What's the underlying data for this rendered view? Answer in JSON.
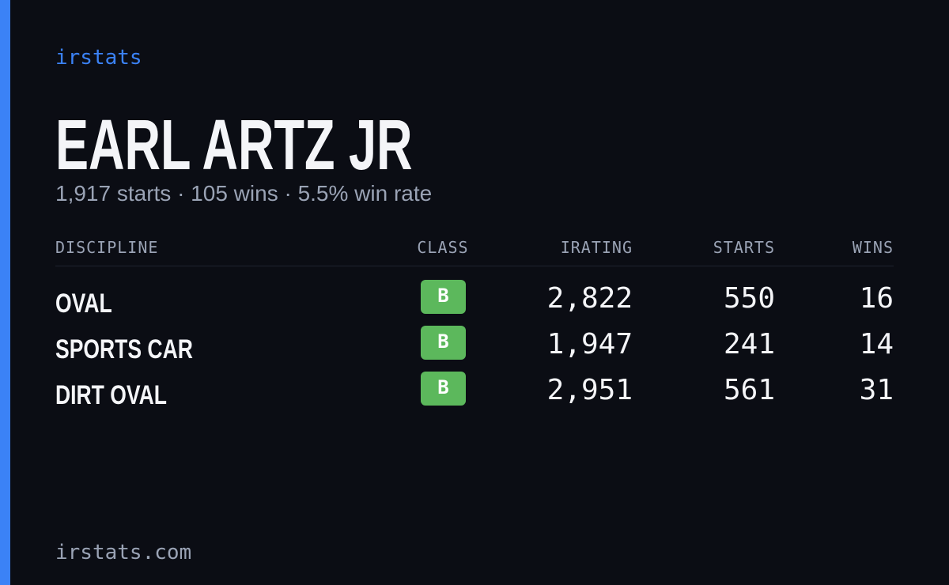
{
  "brand": "irstats",
  "header": {
    "title": "EARL ARTZ JR",
    "subtitle": "1,917 starts · 105 wins · 5.5% win rate"
  },
  "table": {
    "columns": [
      "DISCIPLINE",
      "CLASS",
      "IRATING",
      "STARTS",
      "WINS"
    ],
    "rows": [
      [
        "OVAL",
        "B",
        "2,822",
        "550",
        "16"
      ],
      [
        "SPORTS CAR",
        "B",
        "1,947",
        "241",
        "14"
      ],
      [
        "DIRT OVAL",
        "B",
        "2,951",
        "561",
        "31"
      ]
    ]
  },
  "footer": "irstats.com"
}
